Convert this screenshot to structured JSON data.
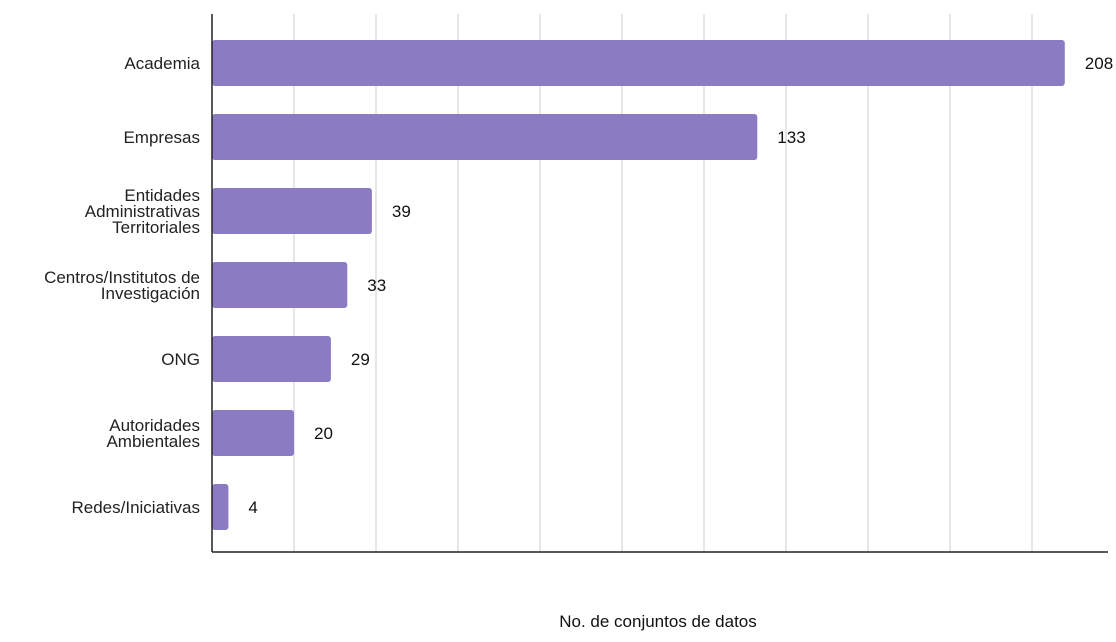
{
  "chart_data": {
    "type": "bar",
    "orientation": "horizontal",
    "categories": [
      [
        "Academia"
      ],
      [
        "Empresas"
      ],
      [
        "Entidades",
        "Administrativas",
        "Territoriales"
      ],
      [
        "Centros/Institutos de",
        "Investigación"
      ],
      [
        "ONG"
      ],
      [
        "Autoridades",
        "Ambientales"
      ],
      [
        "Redes/Iniciativas"
      ]
    ],
    "values": [
      208,
      133,
      39,
      33,
      29,
      20,
      4
    ],
    "data_labels": [
      "208",
      "133",
      "39",
      "33",
      "29",
      "20",
      "4"
    ],
    "xlabel": "No. de conjuntos de datos",
    "ylabel": "",
    "xlim": [
      0,
      220
    ],
    "grid": "vertical",
    "legend": "none",
    "colors": {
      "bar": "#8b7bc3",
      "grid": "#cccccc",
      "axis": "#222222"
    }
  }
}
